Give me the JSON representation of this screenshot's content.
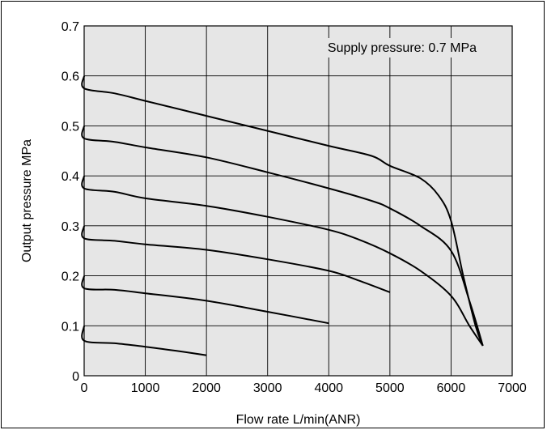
{
  "chart_data": {
    "type": "line",
    "title": "",
    "annotation": "Supply pressure: 0.7 MPa",
    "xlabel": "Flow rate  L/min(ANR)",
    "ylabel": "Output pressure  MPa",
    "xlim": [
      0,
      7000
    ],
    "ylim": [
      0,
      0.7
    ],
    "xticks": [
      "0",
      "1000",
      "2000",
      "3000",
      "4000",
      "5000",
      "6000",
      "7000"
    ],
    "yticks": [
      "0",
      "0.1",
      "0.2",
      "0.3",
      "0.4",
      "0.5",
      "0.6",
      "0.7"
    ],
    "grid": true,
    "plot_background": "#e6e6e6",
    "line_color": "#000000",
    "series": [
      {
        "points": [
          [
            0,
            0.6
          ],
          [
            0,
            0.575
          ],
          [
            500,
            0.565
          ],
          [
            1000,
            0.55
          ],
          [
            2000,
            0.52
          ],
          [
            3000,
            0.49
          ],
          [
            4000,
            0.46
          ],
          [
            4700,
            0.44
          ],
          [
            5000,
            0.42
          ],
          [
            5500,
            0.395
          ],
          [
            5800,
            0.36
          ],
          [
            6000,
            0.31
          ],
          [
            6200,
            0.2
          ],
          [
            6400,
            0.1
          ],
          [
            6520,
            0.06
          ]
        ]
      },
      {
        "points": [
          [
            0,
            0.5
          ],
          [
            0,
            0.475
          ],
          [
            500,
            0.468
          ],
          [
            1000,
            0.457
          ],
          [
            2000,
            0.437
          ],
          [
            3000,
            0.407
          ],
          [
            4000,
            0.375
          ],
          [
            4700,
            0.35
          ],
          [
            5000,
            0.335
          ],
          [
            5500,
            0.3
          ],
          [
            6000,
            0.25
          ],
          [
            6300,
            0.15
          ],
          [
            6520,
            0.06
          ]
        ]
      },
      {
        "points": [
          [
            0,
            0.4
          ],
          [
            0,
            0.375
          ],
          [
            500,
            0.368
          ],
          [
            1000,
            0.355
          ],
          [
            2000,
            0.34
          ],
          [
            3000,
            0.318
          ],
          [
            4000,
            0.292
          ],
          [
            4500,
            0.272
          ],
          [
            5000,
            0.245
          ],
          [
            5500,
            0.21
          ],
          [
            6000,
            0.16
          ],
          [
            6300,
            0.1
          ],
          [
            6520,
            0.06
          ]
        ]
      },
      {
        "points": [
          [
            0,
            0.3
          ],
          [
            0,
            0.275
          ],
          [
            500,
            0.27
          ],
          [
            1000,
            0.263
          ],
          [
            2000,
            0.252
          ],
          [
            3000,
            0.233
          ],
          [
            4000,
            0.21
          ],
          [
            4500,
            0.19
          ],
          [
            5000,
            0.167
          ]
        ]
      },
      {
        "points": [
          [
            0,
            0.2
          ],
          [
            0,
            0.175
          ],
          [
            500,
            0.172
          ],
          [
            1000,
            0.165
          ],
          [
            2000,
            0.15
          ],
          [
            3000,
            0.128
          ],
          [
            4000,
            0.105
          ]
        ]
      },
      {
        "points": [
          [
            0,
            0.1
          ],
          [
            0,
            0.07
          ],
          [
            500,
            0.065
          ],
          [
            1000,
            0.058
          ],
          [
            1500,
            0.05
          ],
          [
            2000,
            0.041
          ]
        ]
      }
    ]
  }
}
